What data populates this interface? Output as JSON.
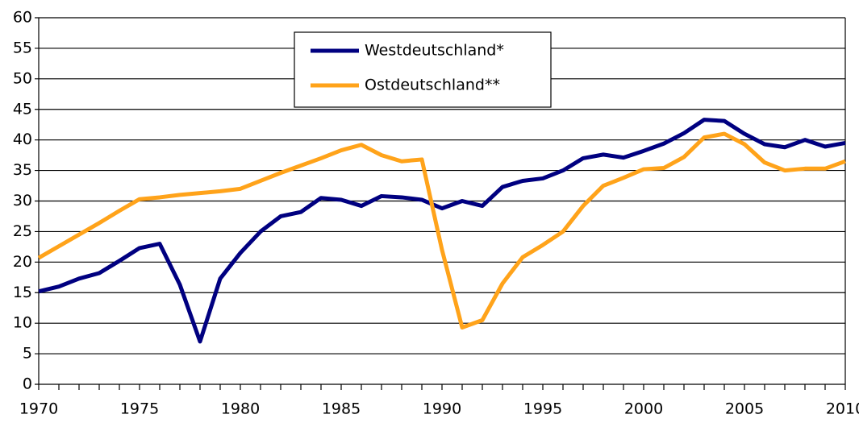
{
  "chart_data": {
    "type": "line",
    "x": [
      1970,
      1971,
      1972,
      1973,
      1974,
      1975,
      1976,
      1977,
      1978,
      1979,
      1980,
      1981,
      1982,
      1983,
      1984,
      1985,
      1986,
      1987,
      1988,
      1989,
      1990,
      1991,
      1992,
      1993,
      1994,
      1995,
      1996,
      1997,
      1998,
      1999,
      2000,
      2001,
      2002,
      2003,
      2004,
      2005,
      2006,
      2007,
      2008,
      2009,
      2010
    ],
    "series": [
      {
        "name": "Westdeutschland*",
        "color": "#000080",
        "values": [
          15.2,
          16,
          17.3,
          18.2,
          20.2,
          22.3,
          23,
          16.3,
          7,
          17.3,
          21.5,
          25,
          27.5,
          28.2,
          30.5,
          30.2,
          29.2,
          30.8,
          30.6,
          30.2,
          28.8,
          30,
          29.2,
          32.3,
          33.3,
          33.7,
          35,
          37,
          37.6,
          37.1,
          38.2,
          39.4,
          41.1,
          43.3,
          43.1,
          41,
          39.3,
          38.8,
          40,
          38.9,
          39.5
        ]
      },
      {
        "name": "Ostdeutschland**",
        "color": "#ffa31a",
        "values": [
          20.7,
          22.6,
          24.5,
          26.4,
          28.4,
          30.3,
          30.6,
          31,
          31.3,
          31.6,
          32,
          33.3,
          34.6,
          35.8,
          37,
          38.3,
          39.2,
          37.5,
          36.5,
          36.8,
          22,
          9.3,
          10.5,
          16.5,
          20.8,
          22.8,
          25,
          29.2,
          32.5,
          33.8,
          35.2,
          35.4,
          37.2,
          40.4,
          41,
          39.3,
          36.3,
          35,
          35.3,
          35.3,
          36.5
        ]
      }
    ],
    "xlim": [
      1970,
      2010
    ],
    "xticks": [
      1970,
      1975,
      1980,
      1985,
      1990,
      1995,
      2000,
      2005,
      2010
    ],
    "ylim": [
      0,
      60
    ],
    "yticks": [
      0,
      5,
      10,
      15,
      20,
      25,
      30,
      35,
      40,
      45,
      50,
      55,
      60
    ],
    "grid": true
  }
}
